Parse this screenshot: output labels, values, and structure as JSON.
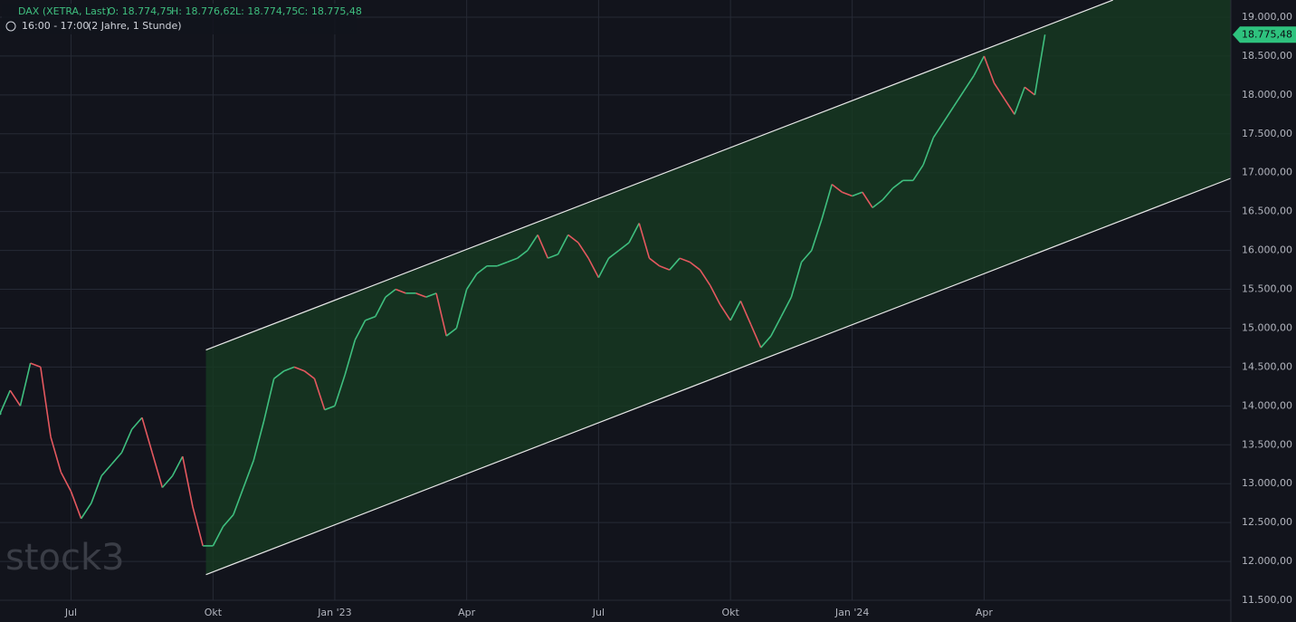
{
  "chart_data": {
    "type": "line",
    "header": {
      "symbol": "DAX (XETRA, Last)",
      "open": "O: 18.774,75",
      "high": "H: 18.776,62",
      "low": "L: 18.774,75",
      "close": "C: 18.775,48",
      "session": "16:00 - 17:00",
      "range": "(2 Jahre, 1 Stunde)"
    },
    "watermark": "stock3",
    "categories": [
      null,
      null,
      null,
      null,
      null,
      null,
      null,
      "Jul",
      null,
      null,
      null,
      null,
      null,
      null,
      null,
      null,
      null,
      null,
      null,
      null,
      null,
      "Okt",
      null,
      null,
      null,
      null,
      null,
      null,
      null,
      null,
      null,
      null,
      null,
      "Jan '23",
      null,
      null,
      null,
      null,
      null,
      null,
      null,
      null,
      null,
      null,
      null,
      null,
      "Apr",
      null,
      null,
      null,
      null,
      null,
      null,
      null,
      null,
      null,
      null,
      null,
      null,
      "Jul",
      null,
      null,
      null,
      null,
      null,
      null,
      null,
      null,
      null,
      null,
      null,
      null,
      "Okt",
      null,
      null,
      null,
      null,
      null,
      null,
      null,
      null,
      null,
      null,
      null,
      "Jan '24",
      null,
      null,
      null,
      null,
      null,
      null,
      null,
      null,
      null,
      null,
      null,
      null,
      "Apr",
      null,
      null,
      null,
      null,
      null,
      null
    ],
    "values": [
      13900,
      14200,
      14000,
      14550,
      14500,
      13600,
      13150,
      12900,
      12550,
      12750,
      13100,
      13250,
      13400,
      13700,
      13850,
      13400,
      12950,
      13100,
      13350,
      12700,
      12200,
      12200,
      12450,
      12600,
      12950,
      13300,
      13800,
      14350,
      14450,
      14500,
      14450,
      14350,
      13950,
      14000,
      14400,
      14850,
      15100,
      15150,
      15400,
      15500,
      15450,
      15450,
      15400,
      15450,
      14900,
      15000,
      15500,
      15700,
      15800,
      15800,
      15850,
      15900,
      16000,
      16200,
      15900,
      15950,
      16200,
      16100,
      15900,
      15650,
      15900,
      16000,
      16100,
      16350,
      15900,
      15800,
      15750,
      15900,
      15850,
      15750,
      15550,
      15300,
      15100,
      15350,
      15050,
      14750,
      14900,
      15150,
      15400,
      15850,
      16000,
      16400,
      16850,
      16750,
      16700,
      16750,
      16550,
      16650,
      16800,
      16900,
      16900,
      17100,
      17450,
      17650,
      17850,
      18050,
      18250,
      18500,
      18150,
      17950,
      17750,
      18100,
      18000,
      18775.48
    ],
    "up_color": "#3fbf7f",
    "down_color": "#e5585f",
    "last_price": {
      "value": 18775.48,
      "label": "18.775,48"
    },
    "channel": {
      "upper": {
        "x": [
          20.3,
          109.7
        ],
        "values": [
          14720,
          19221
        ]
      },
      "lower": {
        "x": [
          20.3,
          121.3
        ],
        "values": [
          11830,
          16927
        ]
      },
      "color": "#e8e8e8",
      "fill": "#163a22"
    },
    "ylim": [
      11500,
      19000
    ],
    "yticks": [
      {
        "value": 11500,
        "label": "11.500,00"
      },
      {
        "value": 12000,
        "label": "12.000,00"
      },
      {
        "value": 12500,
        "label": "12.500,00"
      },
      {
        "value": 13000,
        "label": "13.000,00"
      },
      {
        "value": 13500,
        "label": "13.500,00"
      },
      {
        "value": 14000,
        "label": "14.000,00"
      },
      {
        "value": 14500,
        "label": "14.500,00"
      },
      {
        "value": 15000,
        "label": "15.000,00"
      },
      {
        "value": 15500,
        "label": "15.500,00"
      },
      {
        "value": 16000,
        "label": "16.000,00"
      },
      {
        "value": 16500,
        "label": "16.500,00"
      },
      {
        "value": 17000,
        "label": "17.000,00"
      },
      {
        "value": 17500,
        "label": "17.500,00"
      },
      {
        "value": 18000,
        "label": "18.000,00"
      },
      {
        "value": 18500,
        "label": "18.500,00"
      },
      {
        "value": 19000,
        "label": "19.000,00"
      }
    ],
    "grid": true
  }
}
